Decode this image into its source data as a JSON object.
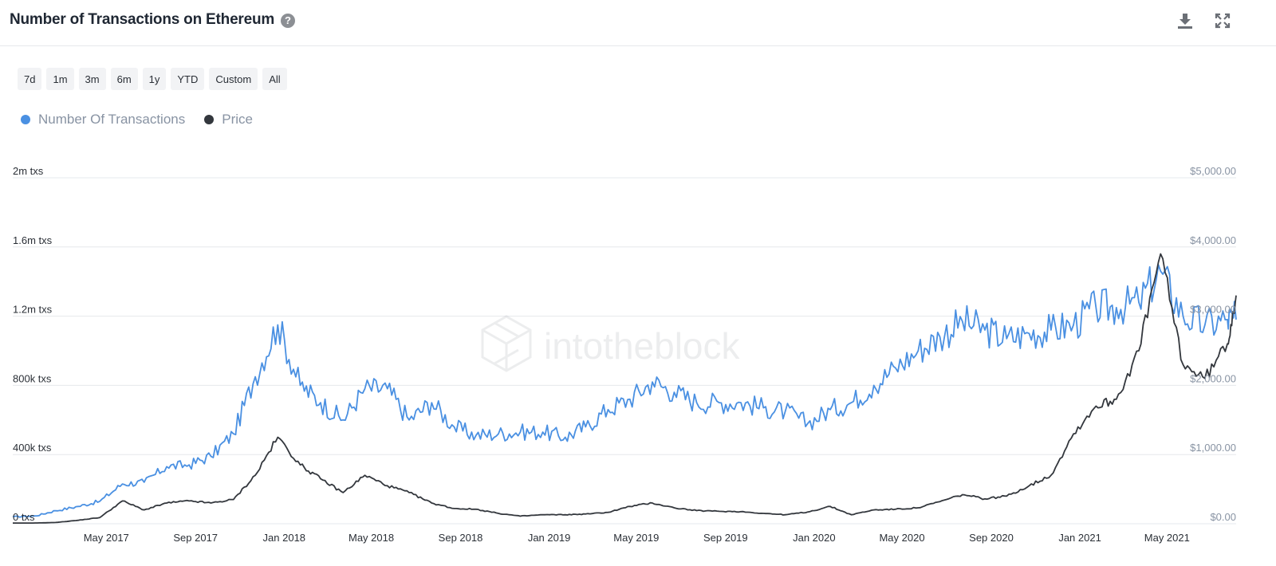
{
  "header": {
    "title": "Number of Transactions on Ethereum",
    "help_icon": "question-circle-icon",
    "download_icon": "download-icon",
    "fullscreen_icon": "expand-icon"
  },
  "ranges": [
    "7d",
    "1m",
    "3m",
    "6m",
    "1y",
    "YTD",
    "Custom",
    "All"
  ],
  "watermark": "intotheblock",
  "colors": {
    "transactions": "#4a90e2",
    "price": "#33373d",
    "grid": "#e6e8ec",
    "axis_text": "#8893a3"
  },
  "chart_data": {
    "type": "line",
    "title": "Number of Transactions on Ethereum",
    "legend": {
      "placement": "top-left",
      "entries": [
        "Number Of Transactions",
        "Price"
      ]
    },
    "grid": true,
    "x_range": [
      "2017-01-01",
      "2021-08-13"
    ],
    "x_ticks": [
      {
        "date": "2017-05-01",
        "label": "May 2017"
      },
      {
        "date": "2017-09-01",
        "label": "Sep 2017"
      },
      {
        "date": "2018-01-01",
        "label": "Jan 2018"
      },
      {
        "date": "2018-05-01",
        "label": "May 2018"
      },
      {
        "date": "2018-09-01",
        "label": "Sep 2018"
      },
      {
        "date": "2019-01-01",
        "label": "Jan 2019"
      },
      {
        "date": "2019-05-01",
        "label": "May 2019"
      },
      {
        "date": "2019-09-01",
        "label": "Sep 2019"
      },
      {
        "date": "2020-01-01",
        "label": "Jan 2020"
      },
      {
        "date": "2020-05-01",
        "label": "May 2020"
      },
      {
        "date": "2020-09-01",
        "label": "Sep 2020"
      },
      {
        "date": "2021-01-01",
        "label": "Jan 2021"
      },
      {
        "date": "2021-05-01",
        "label": "May 2021"
      }
    ],
    "y_left": {
      "range": [
        0,
        2000000
      ],
      "ticks": [
        {
          "value": 0,
          "label": "0 txs"
        },
        {
          "value": 400000,
          "label": "400k txs"
        },
        {
          "value": 800000,
          "label": "800k txs"
        },
        {
          "value": 1200000,
          "label": "1.2m txs"
        },
        {
          "value": 1600000,
          "label": "1.6m txs"
        },
        {
          "value": 2000000,
          "label": "2m txs"
        }
      ]
    },
    "y_right": {
      "range": [
        0,
        5000
      ],
      "ticks": [
        {
          "value": 0,
          "label": "$0.00"
        },
        {
          "value": 1000,
          "label": "$1,000.00"
        },
        {
          "value": 2000,
          "label": "$2,000.00"
        },
        {
          "value": 3000,
          "label": "$3,000.00"
        },
        {
          "value": 4000,
          "label": "$4,000.00"
        },
        {
          "value": 5000,
          "label": "$5,000.00"
        }
      ]
    },
    "series": [
      {
        "name": "Number Of Transactions",
        "axis": "left",
        "points": [
          [
            "2017-01-01",
            40000
          ],
          [
            "2017-02-01",
            45000
          ],
          [
            "2017-03-01",
            75000
          ],
          [
            "2017-04-01",
            100000
          ],
          [
            "2017-05-01",
            130000
          ],
          [
            "2017-06-01",
            230000
          ],
          [
            "2017-07-01",
            240000
          ],
          [
            "2017-08-01",
            330000
          ],
          [
            "2017-09-01",
            340000
          ],
          [
            "2017-10-01",
            390000
          ],
          [
            "2017-11-01",
            520000
          ],
          [
            "2017-12-01",
            850000
          ],
          [
            "2018-01-01",
            1150000
          ],
          [
            "2018-02-01",
            800000
          ],
          [
            "2018-03-01",
            700000
          ],
          [
            "2018-04-01",
            600000
          ],
          [
            "2018-05-01",
            780000
          ],
          [
            "2018-06-01",
            780000
          ],
          [
            "2018-07-01",
            600000
          ],
          [
            "2018-08-01",
            700000
          ],
          [
            "2018-09-01",
            560000
          ],
          [
            "2018-10-01",
            510000
          ],
          [
            "2018-11-01",
            520000
          ],
          [
            "2018-12-01",
            530000
          ],
          [
            "2019-01-01",
            530000
          ],
          [
            "2019-02-01",
            500000
          ],
          [
            "2019-03-01",
            560000
          ],
          [
            "2019-04-01",
            660000
          ],
          [
            "2019-05-01",
            720000
          ],
          [
            "2019-06-01",
            820000
          ],
          [
            "2019-07-01",
            760000
          ],
          [
            "2019-08-01",
            700000
          ],
          [
            "2019-09-01",
            700000
          ],
          [
            "2019-10-01",
            700000
          ],
          [
            "2019-11-01",
            670000
          ],
          [
            "2019-12-01",
            650000
          ],
          [
            "2020-01-01",
            580000
          ],
          [
            "2020-02-01",
            660000
          ],
          [
            "2020-03-01",
            700000
          ],
          [
            "2020-04-01",
            800000
          ],
          [
            "2020-05-01",
            900000
          ],
          [
            "2020-06-01",
            1000000
          ],
          [
            "2020-07-01",
            1080000
          ],
          [
            "2020-08-01",
            1170000
          ],
          [
            "2020-09-01",
            1120000
          ],
          [
            "2020-10-01",
            1070000
          ],
          [
            "2020-11-01",
            1100000
          ],
          [
            "2020-12-01",
            1120000
          ],
          [
            "2021-01-01",
            1150000
          ],
          [
            "2021-02-01",
            1250000
          ],
          [
            "2021-03-01",
            1250000
          ],
          [
            "2021-04-01",
            1280000
          ],
          [
            "2021-05-01",
            1460000
          ],
          [
            "2021-06-01",
            1200000
          ],
          [
            "2021-07-01",
            1150000
          ],
          [
            "2021-08-01",
            1180000
          ],
          [
            "2021-08-13",
            1180000
          ]
        ]
      },
      {
        "name": "Price",
        "axis": "right",
        "points": [
          [
            "2017-01-01",
            10
          ],
          [
            "2017-02-01",
            11
          ],
          [
            "2017-03-01",
            18
          ],
          [
            "2017-04-01",
            50
          ],
          [
            "2017-05-01",
            90
          ],
          [
            "2017-06-01",
            330
          ],
          [
            "2017-07-01",
            200
          ],
          [
            "2017-08-01",
            300
          ],
          [
            "2017-09-01",
            330
          ],
          [
            "2017-10-01",
            300
          ],
          [
            "2017-11-01",
            350
          ],
          [
            "2017-12-01",
            700
          ],
          [
            "2018-01-01",
            1250
          ],
          [
            "2018-02-01",
            850
          ],
          [
            "2018-03-01",
            650
          ],
          [
            "2018-04-01",
            450
          ],
          [
            "2018-05-01",
            700
          ],
          [
            "2018-06-01",
            550
          ],
          [
            "2018-07-01",
            450
          ],
          [
            "2018-08-01",
            300
          ],
          [
            "2018-09-01",
            220
          ],
          [
            "2018-10-01",
            210
          ],
          [
            "2018-11-01",
            150
          ],
          [
            "2018-12-01",
            110
          ],
          [
            "2019-01-01",
            130
          ],
          [
            "2019-02-01",
            130
          ],
          [
            "2019-03-01",
            140
          ],
          [
            "2019-04-01",
            165
          ],
          [
            "2019-05-01",
            250
          ],
          [
            "2019-06-01",
            300
          ],
          [
            "2019-07-01",
            230
          ],
          [
            "2019-08-01",
            190
          ],
          [
            "2019-09-01",
            180
          ],
          [
            "2019-10-01",
            175
          ],
          [
            "2019-11-01",
            150
          ],
          [
            "2019-12-01",
            130
          ],
          [
            "2020-01-01",
            170
          ],
          [
            "2020-02-01",
            250
          ],
          [
            "2020-03-01",
            130
          ],
          [
            "2020-04-01",
            200
          ],
          [
            "2020-05-01",
            210
          ],
          [
            "2020-06-01",
            230
          ],
          [
            "2020-07-01",
            320
          ],
          [
            "2020-08-01",
            420
          ],
          [
            "2020-09-01",
            360
          ],
          [
            "2020-10-01",
            400
          ],
          [
            "2020-11-01",
            550
          ],
          [
            "2020-12-01",
            700
          ],
          [
            "2021-01-01",
            1300
          ],
          [
            "2021-02-01",
            1700
          ],
          [
            "2021-03-01",
            1800
          ],
          [
            "2021-04-01",
            2500
          ],
          [
            "2021-05-01",
            3900
          ],
          [
            "2021-06-01",
            2300
          ],
          [
            "2021-07-01",
            2100
          ],
          [
            "2021-08-01",
            2600
          ],
          [
            "2021-08-13",
            3300
          ]
        ]
      }
    ]
  }
}
